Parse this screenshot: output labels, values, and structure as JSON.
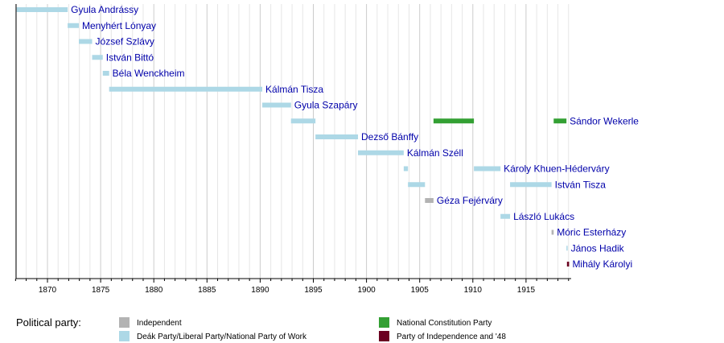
{
  "chart_data": {
    "type": "timeline",
    "xlim": [
      1867,
      1919.3
    ],
    "x_ticks": [
      1870,
      1875,
      1880,
      1885,
      1890,
      1895,
      1900,
      1905,
      1910,
      1915
    ],
    "grid": "vertical, yearly",
    "legend_title": "Political party:",
    "parties": [
      {
        "name": "Independent",
        "color": "#b3b3b3"
      },
      {
        "name": "Deák Party/Liberal Party/National Party of Work",
        "color": "#add8e6"
      },
      {
        "name": "National Constitution Party",
        "color": "#33a033"
      },
      {
        "name": "Party of Independence and '48",
        "color": "#6b0021"
      }
    ],
    "rows": [
      {
        "name": "Gyula Andrássy",
        "terms": [
          [
            1867.1,
            1871.9,
            1
          ]
        ]
      },
      {
        "name": "Menyhért Lónyay",
        "terms": [
          [
            1871.9,
            1872.95,
            1
          ]
        ]
      },
      {
        "name": "József Szlávy",
        "terms": [
          [
            1872.95,
            1874.2,
            1
          ]
        ]
      },
      {
        "name": "István Bittó",
        "terms": [
          [
            1874.2,
            1875.2,
            1
          ]
        ]
      },
      {
        "name": "Béla Wenckheim",
        "terms": [
          [
            1875.2,
            1875.8,
            1
          ]
        ]
      },
      {
        "name": "Kálmán Tisza",
        "terms": [
          [
            1875.8,
            1890.2,
            1
          ]
        ]
      },
      {
        "name": "Gyula Szapáry",
        "terms": [
          [
            1890.2,
            1892.9,
            1
          ]
        ]
      },
      {
        "name": "Sándor Wekerle",
        "terms": [
          [
            1892.9,
            1895.2,
            1
          ],
          [
            1906.3,
            1910.1,
            2
          ],
          [
            1917.6,
            1918.8,
            2
          ]
        ]
      },
      {
        "name": "Dezső Bánffy",
        "terms": [
          [
            1895.2,
            1899.2,
            1
          ]
        ]
      },
      {
        "name": "Kálmán Széll",
        "terms": [
          [
            1899.2,
            1903.5,
            1
          ]
        ]
      },
      {
        "name": "Károly Khuen-Héderváry",
        "terms": [
          [
            1903.5,
            1903.9,
            1
          ],
          [
            1910.1,
            1912.6,
            1
          ]
        ]
      },
      {
        "name": "István Tisza",
        "terms": [
          [
            1903.9,
            1905.5,
            1
          ],
          [
            1913.5,
            1917.4,
            1
          ]
        ]
      },
      {
        "name": "Géza Fejérváry",
        "terms": [
          [
            1905.5,
            1906.3,
            0
          ]
        ]
      },
      {
        "name": "László Lukács",
        "terms": [
          [
            1912.6,
            1913.5,
            1
          ]
        ]
      },
      {
        "name": "Móric Esterházy",
        "terms": [
          [
            1917.4,
            1917.6,
            0
          ]
        ]
      },
      {
        "name": "János Hadik",
        "terms": [
          [
            1918.8,
            1918.85,
            1
          ]
        ]
      },
      {
        "name": "Mihály Károlyi",
        "terms": [
          [
            1918.85,
            1919.05,
            3
          ]
        ]
      }
    ]
  }
}
